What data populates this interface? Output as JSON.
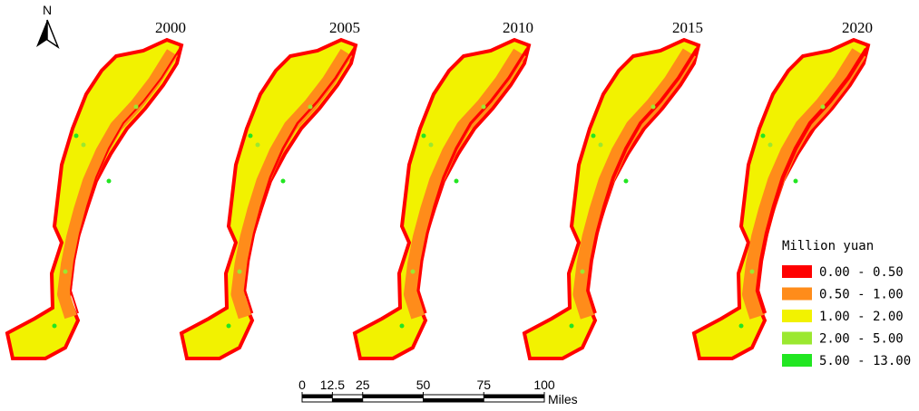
{
  "north": "N",
  "maps": [
    {
      "year": "2000"
    },
    {
      "year": "2005"
    },
    {
      "year": "2010"
    },
    {
      "year": "2015"
    },
    {
      "year": "2020"
    }
  ],
  "legend": {
    "title": "Million yuan",
    "items": [
      {
        "label": "0.00 - 0.50",
        "color": "#ff0000"
      },
      {
        "label": "0.50 - 1.00",
        "color": "#ff8c1a"
      },
      {
        "label": "1.00 - 2.00",
        "color": "#f2f200"
      },
      {
        "label": "2.00 - 5.00",
        "color": "#9be830"
      },
      {
        "label": "5.00 - 13.00",
        "color": "#22e622"
      }
    ]
  },
  "scale_bar": {
    "ticks": [
      0,
      12.5,
      25,
      50,
      75,
      100
    ],
    "unit": "Miles"
  }
}
